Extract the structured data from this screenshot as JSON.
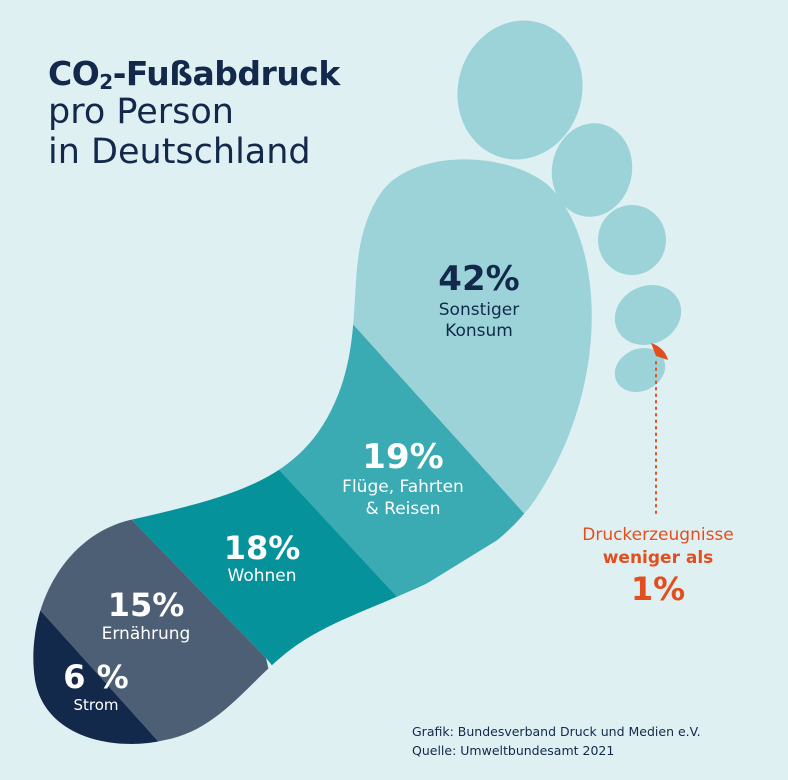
{
  "title": {
    "line1_prefix": "CO",
    "line1_sub": "2",
    "line1_suffix": "-Fußabdruck",
    "line2": "pro Person",
    "line3": "in Deutschland"
  },
  "chart_data": {
    "type": "pie",
    "title": "CO2-Fußabdruck pro Person in Deutschland",
    "categories": [
      "Sonstiger Konsum",
      "Flüge, Fahrten & Reisen",
      "Wohnen",
      "Ernährung",
      "Strom",
      "Druckerzeugnisse"
    ],
    "values": [
      42,
      19,
      18,
      15,
      6,
      1
    ],
    "labels": [
      {
        "pct": "42%",
        "name_lines": [
          "Sonstiger",
          "Konsum"
        ]
      },
      {
        "pct": "19%",
        "name_lines": [
          "Flüge, Fahrten",
          "& Reisen"
        ]
      },
      {
        "pct": "18%",
        "name_lines": [
          "Wohnen"
        ]
      },
      {
        "pct": "15%",
        "name_lines": [
          "Ernährung"
        ]
      },
      {
        "pct": "6 %",
        "name_lines": [
          "Strom"
        ]
      }
    ],
    "colors": [
      "#9bd3d8",
      "#3aaab3",
      "#06929a",
      "#4d5f74",
      "#13294b"
    ],
    "callout": {
      "line1": "Druckerzeugnisse",
      "line2": "weniger als",
      "line3": "1%",
      "color": "#e34e1f"
    }
  },
  "source": {
    "line1": "Grafik: Bundesverband Druck und Medien e.V.",
    "line2": "Quelle: Umweltbundesamt 2021"
  }
}
